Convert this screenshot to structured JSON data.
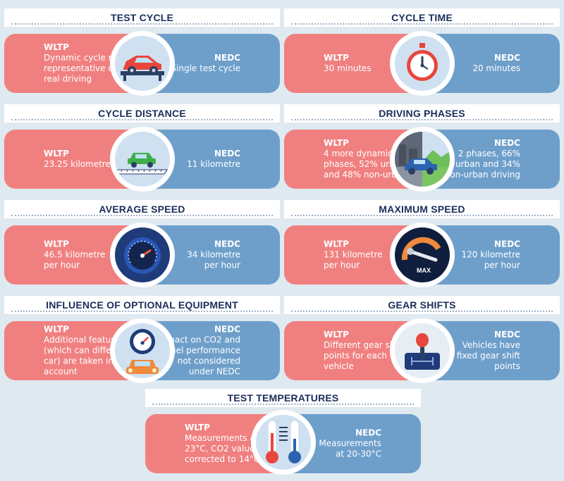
{
  "colors": {
    "nedc": "#f08080",
    "wltp": "#6e9fcb",
    "title": "#1a2e5a",
    "background": "#dfe9f0"
  },
  "panels": [
    {
      "title": "TEST CYCLE",
      "nedc_label": "NEDC",
      "nedc_text": "Single test cycle",
      "wltp_label": "WLTP",
      "wltp_text": "Dynamic cycle more\nrepresentative of\nreal driving",
      "icon": "car-icon"
    },
    {
      "title": "CYCLE TIME",
      "nedc_label": "NEDC",
      "nedc_text": "20 minutes",
      "wltp_label": "WLTP",
      "wltp_text": "30 minutes",
      "icon": "stopwatch-icon"
    },
    {
      "title": "CYCLE DISTANCE",
      "nedc_label": "NEDC",
      "nedc_text": "11 kilometre",
      "wltp_label": "WLTP",
      "wltp_text": "23.25 kilometre",
      "icon": "car-on-ruler-icon"
    },
    {
      "title": "DRIVING PHASES",
      "nedc_label": "NEDC",
      "nedc_text": "2 phases, 66%\nurban and 34%\nnon-urban driving",
      "wltp_label": "WLTP",
      "wltp_text": "4 more dynamic\nphases, 52% urban\nand 48% non-urban",
      "icon": "car-city-landscape-icon"
    },
    {
      "title": "AVERAGE SPEED",
      "nedc_label": "NEDC",
      "nedc_text": "34 kilometre\nper hour",
      "wltp_label": "WLTP",
      "wltp_text": "46.5 kilometre\nper hour",
      "icon": "speedometer-icon"
    },
    {
      "title": "MAXIMUM SPEED",
      "nedc_label": "NEDC",
      "nedc_text": "120 kilometre\nper hour",
      "wltp_label": "WLTP",
      "wltp_text": "131 kilometre\nper hour",
      "icon": "max-gauge-icon",
      "icon_text": "MAX"
    },
    {
      "title": "INFLUENCE OF OPTIONAL EQUIPMENT",
      "nedc_label": "NEDC",
      "nedc_text": "Impact on CO2 and\nfuel performance\nnot considered\nunder NEDC",
      "wltp_label": "WLTP",
      "wltp_text": "Additional features\n(which can differ per\ncar) are taken into\naccount",
      "icon": "fuel-gauge-car-icon"
    },
    {
      "title": "GEAR SHIFTS",
      "nedc_label": "NEDC",
      "nedc_text": "Vehicles have\nfixed gear shift\npoints",
      "wltp_label": "WLTP",
      "wltp_text": "Different gear shift\npoints for each\nvehicle",
      "icon": "gear-stick-icon"
    },
    {
      "title": "TEST TEMPERATURES",
      "nedc_label": "NEDC",
      "nedc_text": "Measurements\nat 20-30°C",
      "wltp_label": "WLTP",
      "wltp_text": "Measurements at\n23°C, CO2 values\ncorrected to 14°C",
      "icon": "thermometers-icon"
    }
  ]
}
